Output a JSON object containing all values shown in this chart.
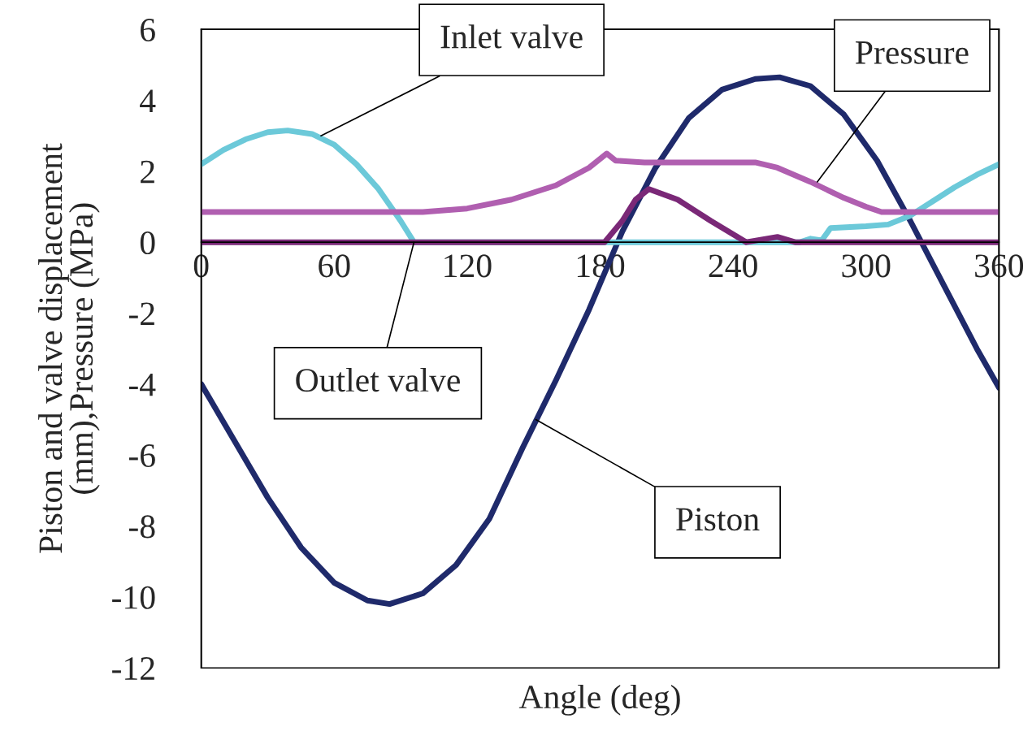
{
  "chart_data": {
    "type": "line",
    "xlabel": "Angle (deg)",
    "ylabel": "Piston and valve displacement\n(mm),Pressure (MPa)",
    "xlim": [
      0,
      360
    ],
    "xticks": [
      0,
      60,
      120,
      180,
      240,
      300,
      360
    ],
    "ylim": [
      -12,
      6
    ],
    "yticks": [
      -12,
      -10,
      -8,
      -6,
      -4,
      -2,
      0,
      2,
      4,
      6
    ],
    "grid": false,
    "legend": false,
    "marker": "none",
    "line_style": "solid",
    "series": [
      {
        "color": "#1f2a6b",
        "x": [
          0,
          15,
          30,
          45,
          60,
          75,
          85,
          100,
          115,
          130,
          145,
          160,
          175,
          190,
          205,
          220,
          235,
          250,
          261,
          275,
          290,
          305,
          320,
          335,
          350,
          360
        ],
        "values": [
          -4.0,
          -5.6,
          -7.2,
          -8.6,
          -9.6,
          -10.1,
          -10.2,
          -9.9,
          -9.1,
          -7.8,
          -5.8,
          -3.9,
          -1.9,
          0.3,
          2.1,
          3.5,
          4.3,
          4.6,
          4.65,
          4.4,
          3.6,
          2.3,
          0.6,
          -1.2,
          -3.0,
          -4.1
        ]
      },
      {
        "color": "#6cc9d9",
        "x": [
          0,
          10,
          20,
          30,
          39,
          50,
          60,
          70,
          80,
          90,
          96,
          180,
          270,
          275,
          280,
          284,
          300,
          310,
          320,
          330,
          340,
          350,
          360
        ],
        "values": [
          2.2,
          2.6,
          2.9,
          3.1,
          3.15,
          3.05,
          2.75,
          2.2,
          1.5,
          0.6,
          0,
          0,
          0,
          0.1,
          0.05,
          0.4,
          0.45,
          0.5,
          0.75,
          1.15,
          1.55,
          1.9,
          2.2
        ]
      },
      {
        "color": "#b05fb0",
        "x": [
          0,
          100,
          120,
          140,
          160,
          175,
          183,
          187,
          200,
          250,
          260,
          275,
          290,
          300,
          307,
          360
        ],
        "values": [
          0.85,
          0.85,
          0.95,
          1.2,
          1.6,
          2.1,
          2.5,
          2.3,
          2.25,
          2.25,
          2.1,
          1.7,
          1.25,
          1.0,
          0.85,
          0.85
        ]
      },
      {
        "color": "#7a2877",
        "x": [
          0,
          182,
          190,
          196,
          202,
          215,
          230,
          246,
          260,
          268,
          360
        ],
        "values": [
          0,
          0,
          0.6,
          1.2,
          1.5,
          1.2,
          0.6,
          0,
          0.15,
          0,
          0
        ]
      }
    ],
    "annotations": [
      {
        "text": "Inlet valve",
        "x": 54,
        "y": 3.0
      },
      {
        "text": "Pressure",
        "x": 278,
        "y": 1.7
      },
      {
        "text": "Outlet valve",
        "x": 96,
        "y": 0
      },
      {
        "text": "Piston",
        "x": 151,
        "y": -5.0
      }
    ]
  }
}
